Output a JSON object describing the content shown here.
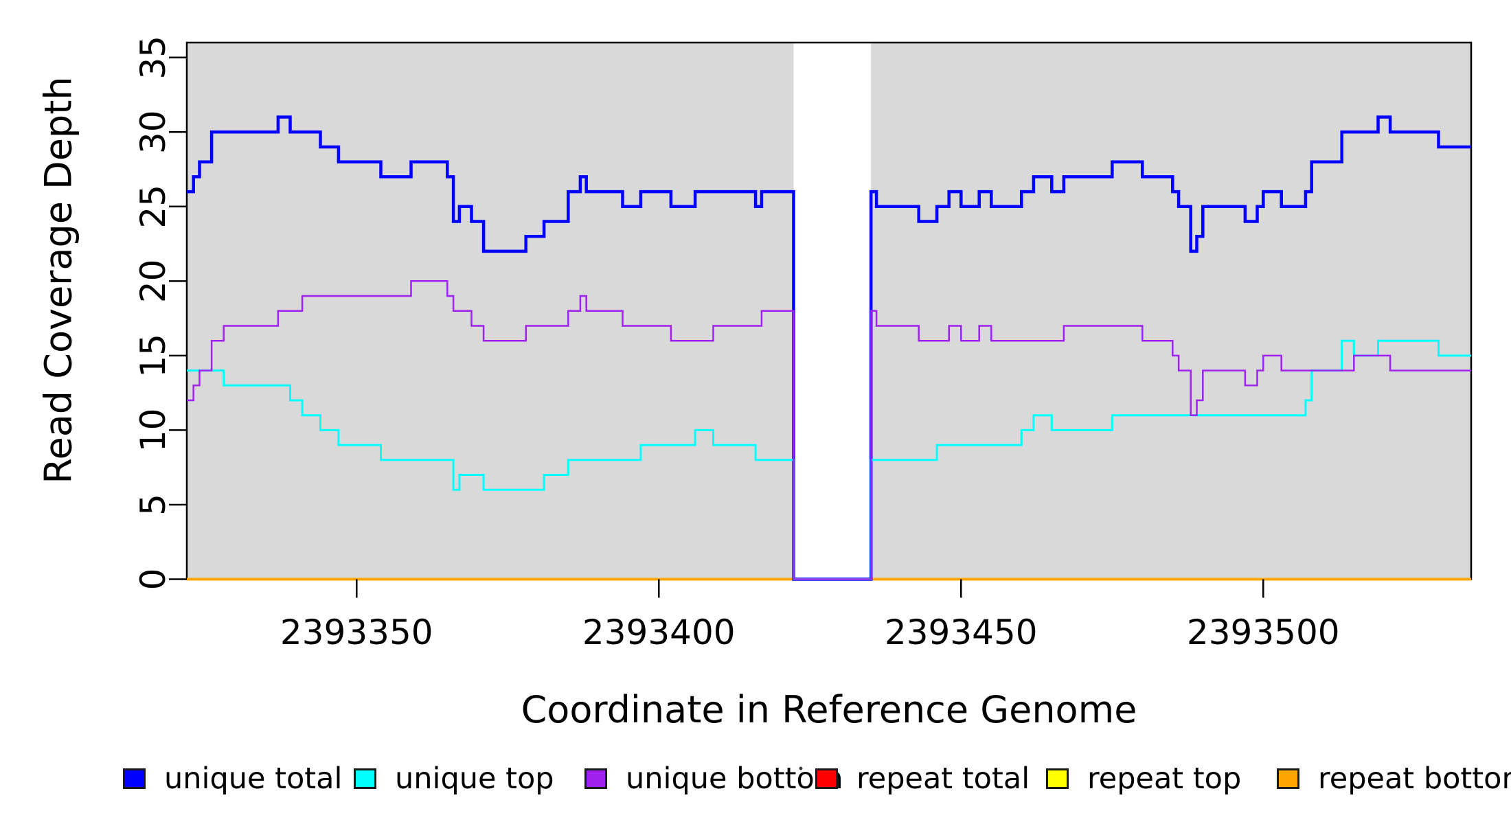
{
  "chart_data": {
    "type": "step-line",
    "title": "",
    "xlabel": "Coordinate in Reference Genome",
    "ylabel": "Read Coverage Depth",
    "xlim": [
      2393321.9,
      2393534.4
    ],
    "ylim": [
      0,
      36
    ],
    "x_ticks": [
      2393350,
      2393400,
      2393450,
      2393500
    ],
    "y_ticks": [
      0,
      5,
      10,
      15,
      20,
      25,
      30,
      35
    ],
    "gap_region": [
      2393422.3,
      2393435.1
    ],
    "panel_bg": "#D9D9D9",
    "axis_color": "#000000",
    "grid": false,
    "legend_position": "bottom",
    "draw_order": [
      "repeat-total",
      "repeat-top",
      "repeat-bottom",
      "unique-total",
      "unique-top",
      "unique-bottom"
    ],
    "series": [
      {
        "id": "unique-total",
        "label": "unique total",
        "color": "#0000FF",
        "line_width": 4.5,
        "segments": [
          [
            2393321.9,
            2393323,
            26
          ],
          [
            2393323,
            2393324,
            27
          ],
          [
            2393324,
            2393326,
            28
          ],
          [
            2393326,
            2393337,
            30
          ],
          [
            2393337,
            2393339,
            31
          ],
          [
            2393339,
            2393344,
            30
          ],
          [
            2393344,
            2393347,
            29
          ],
          [
            2393347,
            2393354,
            28
          ],
          [
            2393354,
            2393359,
            27
          ],
          [
            2393359,
            2393365,
            28
          ],
          [
            2393365,
            2393366,
            27
          ],
          [
            2393366,
            2393367,
            24
          ],
          [
            2393367,
            2393369,
            25
          ],
          [
            2393369,
            2393371,
            24
          ],
          [
            2393371,
            2393378,
            22
          ],
          [
            2393378,
            2393381,
            23
          ],
          [
            2393381,
            2393385,
            24
          ],
          [
            2393385,
            2393387,
            26
          ],
          [
            2393387,
            2393388,
            27
          ],
          [
            2393388,
            2393394,
            26
          ],
          [
            2393394,
            2393397,
            25
          ],
          [
            2393397,
            2393402,
            26
          ],
          [
            2393402,
            2393406,
            25
          ],
          [
            2393406,
            2393416,
            26
          ],
          [
            2393416,
            2393417,
            25
          ],
          [
            2393417,
            2393422.3,
            26
          ],
          [
            2393422.3,
            2393435.1,
            0
          ],
          [
            2393435.1,
            2393436,
            26
          ],
          [
            2393436,
            2393443,
            25
          ],
          [
            2393443,
            2393446,
            24
          ],
          [
            2393446,
            2393448,
            25
          ],
          [
            2393448,
            2393450,
            26
          ],
          [
            2393450,
            2393453,
            25
          ],
          [
            2393453,
            2393455,
            26
          ],
          [
            2393455,
            2393460,
            25
          ],
          [
            2393460,
            2393462,
            26
          ],
          [
            2393462,
            2393465,
            27
          ],
          [
            2393465,
            2393467,
            26
          ],
          [
            2393467,
            2393475,
            27
          ],
          [
            2393475,
            2393480,
            28
          ],
          [
            2393480,
            2393485,
            27
          ],
          [
            2393485,
            2393486,
            26
          ],
          [
            2393486,
            2393488,
            25
          ],
          [
            2393488,
            2393489,
            22
          ],
          [
            2393489,
            2393490,
            23
          ],
          [
            2393490,
            2393497,
            25
          ],
          [
            2393497,
            2393499,
            24
          ],
          [
            2393499,
            2393500,
            25
          ],
          [
            2393500,
            2393503,
            26
          ],
          [
            2393503,
            2393507,
            25
          ],
          [
            2393507,
            2393508,
            26
          ],
          [
            2393508,
            2393513,
            28
          ],
          [
            2393513,
            2393519,
            30
          ],
          [
            2393519,
            2393521,
            31
          ],
          [
            2393521,
            2393529,
            30
          ],
          [
            2393529,
            2393534.4,
            29
          ]
        ]
      },
      {
        "id": "unique-top",
        "label": "unique top",
        "color": "#00FFFF",
        "line_width": 3,
        "segments": [
          [
            2393321.9,
            2393328,
            14
          ],
          [
            2393328,
            2393339,
            13
          ],
          [
            2393339,
            2393341,
            12
          ],
          [
            2393341,
            2393344,
            11
          ],
          [
            2393344,
            2393347,
            10
          ],
          [
            2393347,
            2393354,
            9
          ],
          [
            2393354,
            2393366,
            8
          ],
          [
            2393366,
            2393367,
            6
          ],
          [
            2393367,
            2393371,
            7
          ],
          [
            2393371,
            2393381,
            6
          ],
          [
            2393381,
            2393385,
            7
          ],
          [
            2393385,
            2393397,
            8
          ],
          [
            2393397,
            2393406,
            9
          ],
          [
            2393406,
            2393409,
            10
          ],
          [
            2393409,
            2393416,
            9
          ],
          [
            2393416,
            2393422.3,
            8
          ],
          [
            2393422.3,
            2393435.1,
            0
          ],
          [
            2393435.1,
            2393446,
            8
          ],
          [
            2393446,
            2393460,
            9
          ],
          [
            2393460,
            2393462,
            10
          ],
          [
            2393462,
            2393465,
            11
          ],
          [
            2393465,
            2393475,
            10
          ],
          [
            2393475,
            2393507,
            11
          ],
          [
            2393507,
            2393508,
            12
          ],
          [
            2393508,
            2393513,
            14
          ],
          [
            2393513,
            2393515,
            16
          ],
          [
            2393515,
            2393519,
            15
          ],
          [
            2393519,
            2393529,
            16
          ],
          [
            2393529,
            2393534.4,
            15
          ]
        ]
      },
      {
        "id": "unique-bottom",
        "label": "unique bottom",
        "color": "#A020F0",
        "line_width": 2.5,
        "segments": [
          [
            2393321.9,
            2393323,
            12
          ],
          [
            2393323,
            2393324,
            13
          ],
          [
            2393324,
            2393326,
            14
          ],
          [
            2393326,
            2393328,
            16
          ],
          [
            2393328,
            2393337,
            17
          ],
          [
            2393337,
            2393341,
            18
          ],
          [
            2393341,
            2393359,
            19
          ],
          [
            2393359,
            2393365,
            20
          ],
          [
            2393365,
            2393366,
            19
          ],
          [
            2393366,
            2393369,
            18
          ],
          [
            2393369,
            2393371,
            17
          ],
          [
            2393371,
            2393378,
            16
          ],
          [
            2393378,
            2393385,
            17
          ],
          [
            2393385,
            2393387,
            18
          ],
          [
            2393387,
            2393388,
            19
          ],
          [
            2393388,
            2393394,
            18
          ],
          [
            2393394,
            2393402,
            17
          ],
          [
            2393402,
            2393409,
            16
          ],
          [
            2393409,
            2393417,
            17
          ],
          [
            2393417,
            2393422.3,
            18
          ],
          [
            2393422.3,
            2393435.1,
            0
          ],
          [
            2393435.1,
            2393436,
            18
          ],
          [
            2393436,
            2393443,
            17
          ],
          [
            2393443,
            2393448,
            16
          ],
          [
            2393448,
            2393450,
            17
          ],
          [
            2393450,
            2393453,
            16
          ],
          [
            2393453,
            2393455,
            17
          ],
          [
            2393455,
            2393467,
            16
          ],
          [
            2393467,
            2393480,
            17
          ],
          [
            2393480,
            2393485,
            16
          ],
          [
            2393485,
            2393486,
            15
          ],
          [
            2393486,
            2393488,
            14
          ],
          [
            2393488,
            2393489,
            11
          ],
          [
            2393489,
            2393490,
            12
          ],
          [
            2393490,
            2393497,
            14
          ],
          [
            2393497,
            2393499,
            13
          ],
          [
            2393499,
            2393500,
            14
          ],
          [
            2393500,
            2393503,
            15
          ],
          [
            2393503,
            2393515,
            14
          ],
          [
            2393515,
            2393521,
            15
          ],
          [
            2393521,
            2393534.4,
            14
          ]
        ]
      },
      {
        "id": "repeat-total",
        "label": "repeat total",
        "color": "#FF0000",
        "line_width": 3.5,
        "segments": [
          [
            2393321.9,
            2393534.4,
            0
          ]
        ]
      },
      {
        "id": "repeat-top",
        "label": "repeat top",
        "color": "#FFFF00",
        "line_width": 3.5,
        "segments": [
          [
            2393321.9,
            2393534.4,
            0
          ]
        ]
      },
      {
        "id": "repeat-bottom",
        "label": "repeat bottom",
        "color": "#FFA500",
        "line_width": 3.5,
        "segments": [
          [
            2393321.9,
            2393534.4,
            0
          ]
        ]
      }
    ]
  }
}
